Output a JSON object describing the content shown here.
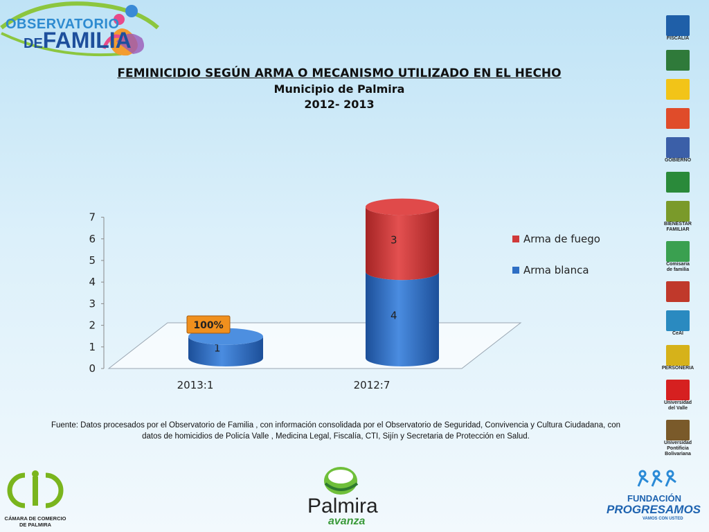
{
  "logos": {
    "top_left": {
      "line1": "OBSERVATORIO",
      "line2_prefix": "DE",
      "line2": "FAMILIA"
    },
    "sidebar": [
      {
        "name": "fiscalia-logo",
        "caption": "FISCALIA",
        "color": "#1f5fa8"
      },
      {
        "name": "policia-logo",
        "caption": "",
        "color": "#2f7a3a"
      },
      {
        "name": "medicina-legal-logo",
        "caption": "",
        "color": "#f2c418"
      },
      {
        "name": "red-logo",
        "caption": "",
        "color": "#e04c2a"
      },
      {
        "name": "sg-gobierno-logo",
        "caption": "GOBIERNO",
        "color": "#3b5fa8"
      },
      {
        "name": "green-logo",
        "caption": "",
        "color": "#2a8a3a"
      },
      {
        "name": "bienestar-familiar-logo",
        "caption": "BIENESTAR FAMILIAR",
        "color": "#7a9a2a"
      },
      {
        "name": "comisaria-familia-logo",
        "caption": "Comisaria de familia",
        "color": "#3aa050"
      },
      {
        "name": "casas-justicia-logo",
        "caption": "",
        "color": "#c0392b"
      },
      {
        "name": "ceai-logo",
        "caption": "CeAI",
        "color": "#2a8ac0"
      },
      {
        "name": "personeria-logo",
        "caption": "PERSONERIA",
        "color": "#d6b21a"
      },
      {
        "name": "universidad-valle-logo",
        "caption": "Universidad del Valle",
        "color": "#d62020"
      },
      {
        "name": "universidad-bolivariana-logo",
        "caption": "Universidad Pontificia Bolivariana",
        "color": "#7a5a2a"
      }
    ],
    "bottom_left": {
      "caption": "CÁMARA DE COMERCIO DE PALMIRA"
    },
    "bottom_center": {
      "word1": "Palmira",
      "word2": "avanza"
    },
    "bottom_right": {
      "word1": "FUNDACIÓN",
      "word2": "PROGRESAMOS",
      "word3": "VAMOS CON USTED"
    }
  },
  "chart_data": {
    "type": "bar",
    "title": "FEMINICIDIO SEGÚN ARMA O MECANISMO UTILIZADO EN EL  HECHO",
    "subtitle": "Municipio de Palmira",
    "subtitle2": "2012- 2013",
    "categories": [
      "2013:1",
      "2012:7"
    ],
    "stacked": true,
    "series": [
      {
        "name": "Arma blanca",
        "values": [
          1,
          4
        ],
        "color": "#2e6fc4"
      },
      {
        "name": "Arma de fuego",
        "values": [
          0,
          3
        ],
        "color": "#d03a3a"
      }
    ],
    "ylim": [
      0,
      7
    ],
    "yticks": [
      0,
      1,
      2,
      3,
      4,
      5,
      6,
      7
    ],
    "annotations": [
      {
        "category": "2013:1",
        "text": "100%",
        "color": "#f0901e"
      }
    ],
    "legend_position": "right"
  },
  "source_text_line1": "Fuente: Datos procesados por el Observatorio  de  Familia , con información consolidada por el Observatorio de Seguridad, Convivencia y Cultura  Ciudadana, con",
  "source_text_line2": "datos  de homicidios de Policía Valle , Medicina  Legal,  Fiscalía, CTI,  Sijín y Secretaria de  Protección en Salud."
}
